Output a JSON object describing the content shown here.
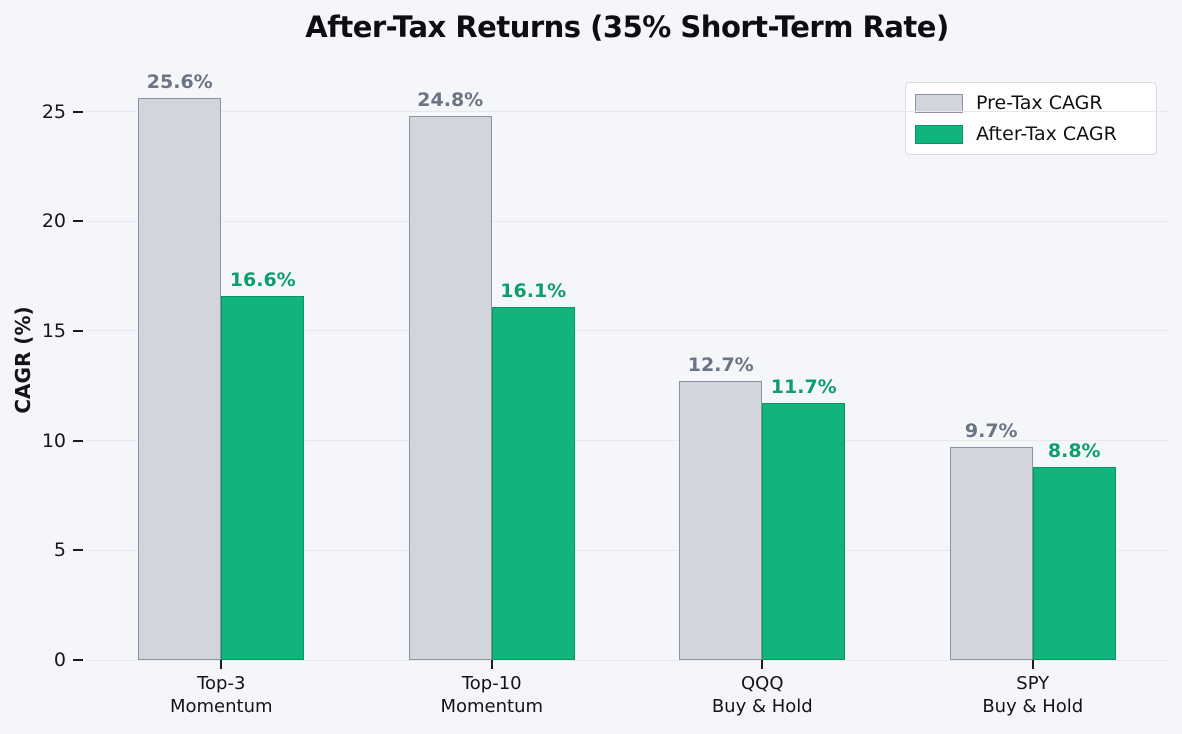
{
  "chart_data": {
    "type": "bar",
    "title": "After-Tax Returns (35% Short-Term Rate)",
    "ylabel": "CAGR (%)",
    "xlabel": "",
    "categories": [
      "Top-3\nMomentum",
      "Top-10\nMomentum",
      "QQQ\nBuy & Hold",
      "SPY\nBuy & Hold"
    ],
    "series": [
      {
        "name": "Pre-Tax CAGR",
        "values": [
          25.6,
          24.8,
          12.7,
          9.7
        ],
        "labels": [
          "25.6%",
          "24.8%",
          "12.7%",
          "9.7%"
        ],
        "fill": "#d2d5dc",
        "edge": "#8a93a4",
        "label_color": "#6b7483"
      },
      {
        "name": "After-Tax CAGR",
        "values": [
          16.6,
          16.1,
          11.7,
          8.8
        ],
        "labels": [
          "16.6%",
          "16.1%",
          "11.7%",
          "8.8%"
        ],
        "fill": "#11b57c",
        "edge": "#0a9567",
        "label_color": "#0e9e6c"
      }
    ],
    "yticks": [
      0,
      5,
      10,
      15,
      20,
      25
    ],
    "ylim": [
      0,
      27.4
    ],
    "grid": true,
    "legend_position": "upper right",
    "colors": {
      "background": "#f5f6fa",
      "gridline": "#e7e9ee",
      "tick": "#1c1c1c",
      "legend_border": "#d9dbe0",
      "legend_background": "#ffffff"
    }
  }
}
